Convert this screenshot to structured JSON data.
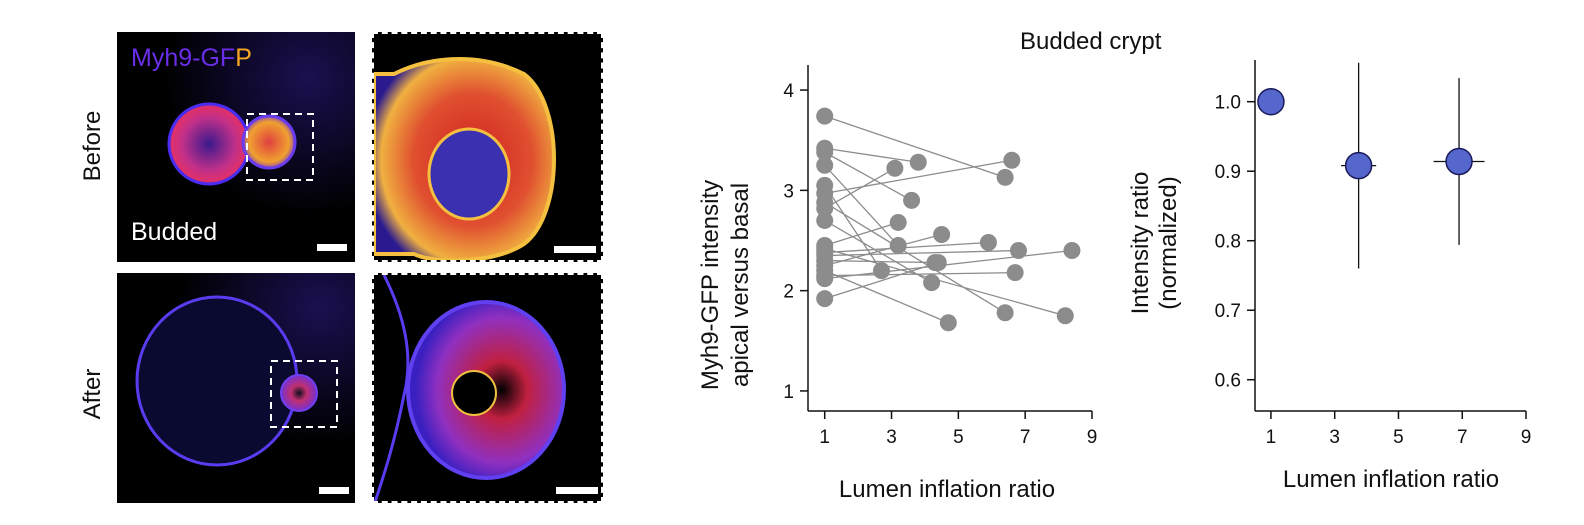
{
  "figure": {
    "title": "Budded crypt",
    "row_labels": [
      "Before",
      "After"
    ],
    "channel_label_parts": [
      "Myh9-GF",
      "P"
    ],
    "condition_label": "Budded",
    "colors": {
      "channel_purple": "#6a2ee8",
      "channel_orange": "#f5a623",
      "chart_grey": "#8c8c8c",
      "marker_blue": "#5566cc",
      "marker_edge": "#1a1a5a"
    }
  },
  "chart_data": [
    {
      "type": "scatter",
      "connected_pairs": true,
      "xlabel": "Lumen inflation ratio",
      "ylabel_lines": [
        "Myh9-GFP intensity",
        "apical versus basal"
      ],
      "xlim": [
        0.5,
        9
      ],
      "ylim": [
        0.8,
        4.25
      ],
      "xticks": [
        1,
        3,
        5,
        7,
        9
      ],
      "yticks": [
        1,
        2,
        3,
        4
      ],
      "pairs": [
        {
          "y1": 3.74,
          "x2": 6.4,
          "y2": 3.13
        },
        {
          "y1": 3.42,
          "x2": 3.8,
          "y2": 3.28
        },
        {
          "y1": 3.38,
          "x2": 3.6,
          "y2": 2.9
        },
        {
          "y1": 3.25,
          "x2": 3.2,
          "y2": 2.45
        },
        {
          "y1": 3.05,
          "x2": 2.7,
          "y2": 2.2
        },
        {
          "y1": 2.97,
          "x2": 6.6,
          "y2": 3.3
        },
        {
          "y1": 2.88,
          "x2": 6.4,
          "y2": 1.78
        },
        {
          "y1": 2.82,
          "x2": 3.1,
          "y2": 3.22
        },
        {
          "y1": 2.7,
          "x2": 4.2,
          "y2": 2.08
        },
        {
          "y1": 2.45,
          "x2": 3.2,
          "y2": 2.68
        },
        {
          "y1": 2.42,
          "x2": 8.2,
          "y2": 1.75
        },
        {
          "y1": 2.35,
          "x2": 6.8,
          "y2": 2.4
        },
        {
          "y1": 2.3,
          "x2": 4.3,
          "y2": 2.28
        },
        {
          "y1": 2.25,
          "x2": 4.5,
          "y2": 2.56
        },
        {
          "y1": 2.2,
          "x2": 4.7,
          "y2": 1.68
        },
        {
          "y1": 2.15,
          "x2": 6.7,
          "y2": 2.18
        },
        {
          "y1": 2.12,
          "x2": 8.4,
          "y2": 2.4
        },
        {
          "y1": 1.92,
          "x2": 4.4,
          "y2": 2.28
        },
        {
          "y1": 2.38,
          "x2": 5.9,
          "y2": 2.48
        }
      ]
    },
    {
      "type": "scatter",
      "error_bars": true,
      "xlabel": "Lumen inflation ratio",
      "ylabel_lines": [
        "Intensity ratio",
        "(normalized)"
      ],
      "xlim": [
        0.5,
        9
      ],
      "ylim": [
        0.555,
        1.06
      ],
      "xticks": [
        1,
        3,
        5,
        7,
        9
      ],
      "yticks": [
        0.6,
        0.7,
        0.8,
        0.9,
        1.0
      ],
      "ytick_labels": [
        "0.6",
        "0.7",
        "0.8",
        "0.9",
        "1.0"
      ],
      "points": [
        {
          "x": 1.0,
          "y": 1.0,
          "xerr": 0.0,
          "yerr_low": 0.0,
          "yerr_high": 0.0
        },
        {
          "x": 3.75,
          "y": 0.908,
          "xerr": 0.55,
          "yerr_low": 0.148,
          "yerr_high": 0.148
        },
        {
          "x": 6.9,
          "y": 0.914,
          "xerr": 0.8,
          "yerr_low": 0.12,
          "yerr_high": 0.12
        }
      ]
    }
  ]
}
